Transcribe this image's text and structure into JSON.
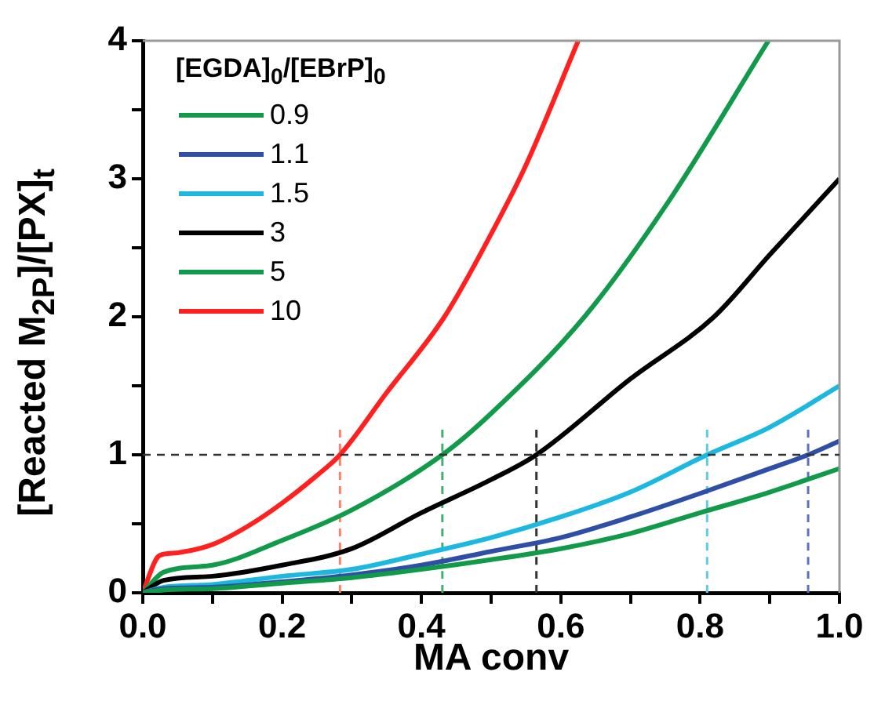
{
  "chart_data": {
    "type": "line",
    "xlabel": "MA conv",
    "ylabel": "[Reacted M$_{2P}$]/[PX]$_{t}$",
    "legend_title": "[EGDA]$_{0}$/[EBrP]$_{0}$",
    "legend": "top left",
    "marker": "none",
    "line_style": "solid",
    "xlim": [
      0,
      1
    ],
    "xticks": [
      {
        "value": 0,
        "label": "0.0"
      },
      {
        "value": 0.1,
        "label": null
      },
      {
        "value": 0.2,
        "label": "0.2"
      },
      {
        "value": 0.3,
        "label": null
      },
      {
        "value": 0.4,
        "label": "0.4"
      },
      {
        "value": 0.5,
        "label": null
      },
      {
        "value": 0.6,
        "label": "0.6"
      },
      {
        "value": 0.7,
        "label": null
      },
      {
        "value": 0.8,
        "label": "0.8"
      },
      {
        "value": 0.9,
        "label": null
      },
      {
        "value": 1,
        "label": "1.0"
      }
    ],
    "ylim": [
      0,
      4
    ],
    "yticks": [
      0,
      {
        "value": 0.5,
        "label": null
      },
      1,
      {
        "value": 1.5,
        "label": null
      },
      2,
      {
        "value": 2.5,
        "label": null
      },
      3,
      {
        "value": 3.5,
        "label": null
      },
      4
    ],
    "series": [
      {
        "name": "0.9",
        "color": "#119a4a",
        "x": [
          0,
          0.03,
          0.1,
          0.2,
          0.3,
          0.4,
          0.5,
          0.6,
          0.7,
          0.8,
          0.9,
          1.0
        ],
        "values": [
          0,
          0.02,
          0.03,
          0.07,
          0.11,
          0.17,
          0.24,
          0.32,
          0.43,
          0.58,
          0.73,
          0.9
        ]
      },
      {
        "name": "1.1",
        "color": "#2e4fa5",
        "x": [
          0,
          0.03,
          0.1,
          0.2,
          0.3,
          0.4,
          0.5,
          0.6,
          0.7,
          0.8,
          0.9,
          0.955,
          1.0
        ],
        "values": [
          0,
          0.03,
          0.04,
          0.08,
          0.13,
          0.2,
          0.3,
          0.4,
          0.55,
          0.72,
          0.9,
          1.0,
          1.1
        ]
      },
      {
        "name": "1.5",
        "color": "#1cb8e0",
        "x": [
          0,
          0.03,
          0.1,
          0.2,
          0.3,
          0.4,
          0.5,
          0.6,
          0.7,
          0.81,
          0.9,
          1.0
        ],
        "values": [
          0,
          0.04,
          0.06,
          0.12,
          0.17,
          0.28,
          0.4,
          0.55,
          0.73,
          1.0,
          1.2,
          1.5
        ]
      },
      {
        "name": "3",
        "color": "#000000",
        "x": [
          0,
          0.03,
          0.1,
          0.2,
          0.3,
          0.4,
          0.5,
          0.565,
          0.7,
          0.82,
          0.9,
          1.0
        ],
        "values": [
          0,
          0.09,
          0.12,
          0.2,
          0.32,
          0.58,
          0.82,
          1.0,
          1.55,
          2.0,
          2.45,
          3.0
        ]
      },
      {
        "name": "5",
        "color": "#119a4a",
        "x": [
          0,
          0.03,
          0.1,
          0.2,
          0.3,
          0.43,
          0.5,
          0.634,
          0.75,
          0.898
        ],
        "values": [
          0,
          0.15,
          0.2,
          0.38,
          0.6,
          1.0,
          1.3,
          2.0,
          2.8,
          4.0
        ]
      },
      {
        "name": "10",
        "color": "#ff2020",
        "x": [
          0,
          0.02,
          0.03,
          0.05,
          0.1,
          0.15,
          0.2,
          0.25,
          0.283,
          0.35,
          0.433,
          0.5,
          0.55,
          0.625
        ],
        "values": [
          0,
          0.25,
          0.28,
          0.29,
          0.35,
          0.48,
          0.65,
          0.85,
          1.0,
          1.45,
          2.0,
          2.6,
          3.1,
          4.0
        ]
      },
      {
        "color": "#ff8060",
        "line_style": "dashed",
        "x": [
          0.283,
          0.283
        ],
        "values": [
          0,
          1.2
        ]
      },
      {
        "color": "#40b070",
        "line_style": "dashed",
        "x": [
          0.43,
          0.43
        ],
        "values": [
          0,
          1.2
        ]
      },
      {
        "color": "#333333",
        "line_style": "dashed",
        "x": [
          0.565,
          0.565
        ],
        "values": [
          0,
          1.2
        ]
      },
      {
        "color": "#60c8e8",
        "line_style": "dashed",
        "x": [
          0.81,
          0.81
        ],
        "values": [
          0,
          1.2
        ]
      },
      {
        "color": "#6070c0",
        "line_style": "dashed",
        "x": [
          0.955,
          0.955
        ],
        "values": [
          0,
          1.2
        ]
      }
    ],
    "ref_lines": [
      {
        "axis": "y",
        "value": 1,
        "color": "#333333",
        "line_style": "dashed"
      }
    ]
  }
}
